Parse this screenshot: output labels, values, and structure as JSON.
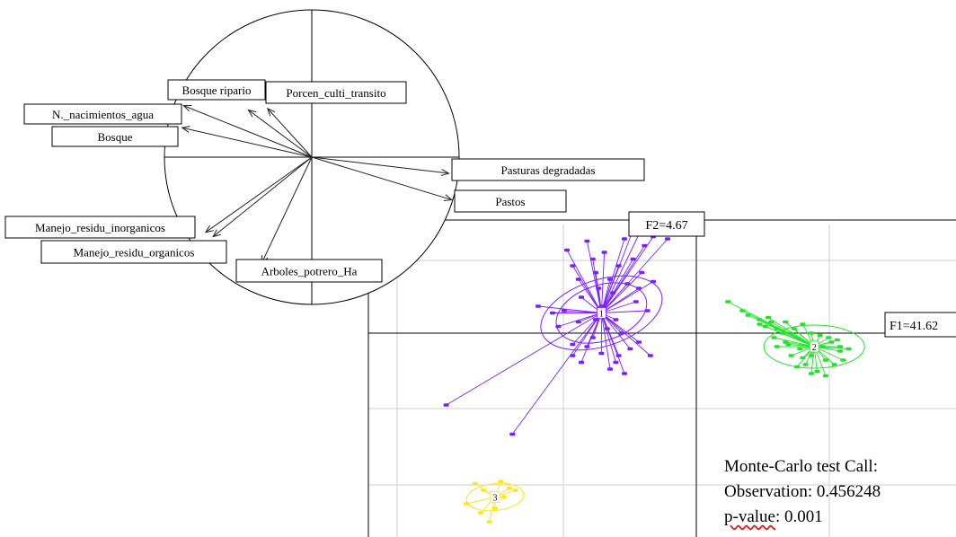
{
  "chart_data": [
    {
      "type": "correlation-circle",
      "variables": [
        {
          "name": "Bosque ripario",
          "x": -0.43,
          "y": 0.32
        },
        {
          "name": "Porcen_culti_transito",
          "x": -0.3,
          "y": 0.33
        },
        {
          "name": "N._nacimientos_agua",
          "x": -0.87,
          "y": 0.35
        },
        {
          "name": "Bosque",
          "x": -0.88,
          "y": 0.2
        },
        {
          "name": "Pasturas degradadas",
          "x": 0.93,
          "y": -0.11
        },
        {
          "name": "Pastos",
          "x": 0.95,
          "y": -0.29
        },
        {
          "name": "Manejo_residu_inorganicos",
          "x": -0.72,
          "y": -0.51
        },
        {
          "name": "Manejo_residu_organicos",
          "x": -0.67,
          "y": -0.54
        },
        {
          "name": "Arboles_potrero_Ha",
          "x": -0.34,
          "y": -0.72
        }
      ]
    },
    {
      "type": "scatter",
      "xlabel": "F1=41.62",
      "ylabel": "F2=4.67",
      "groups": [
        {
          "label": "1",
          "color": "#7a1fff",
          "centroid": [
            -0.33,
            0.09
          ],
          "points": [
            [
              -0.45,
              0.37
            ],
            [
              -0.43,
              0.3
            ],
            [
              -0.41,
              0.24
            ],
            [
              -0.4,
              0.16
            ],
            [
              -0.38,
              0.41
            ],
            [
              -0.36,
              0.33
            ],
            [
              -0.35,
              0.27
            ],
            [
              -0.34,
              0.2
            ],
            [
              -0.33,
              0.12
            ],
            [
              -0.32,
              0.36
            ],
            [
              -0.3,
              0.24
            ],
            [
              -0.29,
              0.18
            ],
            [
              -0.28,
              0.06
            ],
            [
              -0.27,
              0.3
            ],
            [
              -0.25,
              0.42
            ],
            [
              -0.24,
              0.22
            ],
            [
              -0.22,
              0.33
            ],
            [
              -0.21,
              0.14
            ],
            [
              -0.2,
              0.44
            ],
            [
              -0.19,
              0.27
            ],
            [
              -0.18,
              0.39
            ],
            [
              -0.22,
              0.46
            ],
            [
              -0.15,
              0.43
            ],
            [
              -0.1,
              0.42
            ],
            [
              -0.26,
              0.0
            ],
            [
              -0.31,
              0.02
            ],
            [
              -0.36,
              -0.02
            ],
            [
              -0.41,
              0.05
            ],
            [
              -0.46,
              0.1
            ],
            [
              -0.48,
              0.03
            ],
            [
              -0.55,
              0.12
            ],
            [
              -0.38,
              -0.06
            ],
            [
              -0.33,
              -0.09
            ],
            [
              -0.28,
              -0.13
            ],
            [
              -0.23,
              -0.07
            ],
            [
              -0.3,
              -0.16
            ],
            [
              -0.25,
              -0.18
            ],
            [
              -0.2,
              -0.04
            ],
            [
              -0.16,
              -0.1
            ],
            [
              -0.43,
              -0.05
            ],
            [
              -0.4,
              -0.13
            ],
            [
              -0.17,
              0.1
            ],
            [
              -0.15,
              0.23
            ],
            [
              -0.35,
              0.06
            ],
            [
              -0.5,
              0.09
            ],
            [
              -0.27,
              -0.1
            ],
            [
              -0.2,
              0.2
            ],
            [
              -0.43,
              -0.1
            ],
            [
              -0.87,
              -0.32
            ],
            [
              -0.64,
              -0.45
            ]
          ]
        },
        {
          "label": "2",
          "color": "#1ee626",
          "centroid": [
            0.41,
            -0.06
          ],
          "points": [
            [
              0.11,
              0.14
            ],
            [
              0.18,
              0.08
            ],
            [
              0.22,
              0.04
            ],
            [
              0.25,
              0.07
            ],
            [
              0.28,
              0.02
            ],
            [
              0.31,
              0.05
            ],
            [
              0.34,
              0.02
            ],
            [
              0.37,
              0.04
            ],
            [
              0.4,
              0.0
            ],
            [
              0.43,
              -0.01
            ],
            [
              0.46,
              -0.02
            ],
            [
              0.49,
              -0.03
            ],
            [
              0.32,
              -0.05
            ],
            [
              0.36,
              -0.07
            ],
            [
              0.4,
              -0.1
            ],
            [
              0.45,
              -0.12
            ],
            [
              0.5,
              -0.08
            ],
            [
              0.53,
              -0.07
            ],
            [
              0.38,
              -0.14
            ],
            [
              0.42,
              -0.17
            ],
            [
              0.35,
              -0.15
            ],
            [
              0.4,
              -0.18
            ],
            [
              0.28,
              -0.06
            ],
            [
              0.31,
              -0.04
            ],
            [
              0.24,
              0.03
            ],
            [
              0.44,
              -0.06
            ],
            [
              0.47,
              -0.04
            ],
            [
              0.26,
              0.05
            ],
            [
              0.3,
              0.0
            ],
            [
              0.48,
              -0.14
            ],
            [
              0.51,
              -0.12
            ],
            [
              0.45,
              -0.19
            ],
            [
              0.33,
              -0.1
            ],
            [
              0.37,
              -0.11
            ],
            [
              0.27,
              -0.02
            ],
            [
              0.22,
              0.06
            ],
            [
              0.16,
              0.1
            ],
            [
              0.5,
              -0.06
            ]
          ]
        },
        {
          "label": "3",
          "color": "#ffe51a",
          "centroid": [
            -0.7,
            -0.73
          ],
          "points": [
            [
              -0.77,
              -0.67
            ],
            [
              -0.74,
              -0.7
            ],
            [
              -0.68,
              -0.66
            ],
            [
              -0.65,
              -0.69
            ],
            [
              -0.63,
              -0.7
            ],
            [
              -0.67,
              -0.73
            ],
            [
              -0.8,
              -0.76
            ],
            [
              -0.75,
              -0.8
            ],
            [
              -0.7,
              -0.78
            ],
            [
              -0.72,
              -0.84
            ]
          ]
        }
      ]
    }
  ],
  "test_box": {
    "line1": "Monte-Carlo test Call:",
    "line2": "Observation: 0.456248",
    "line3_label": "p-value",
    "line3_rest": ": 0.001"
  }
}
